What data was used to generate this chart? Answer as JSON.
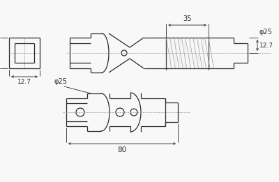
{
  "bg_color": "#f8f8f8",
  "line_color": "#2a2a2a",
  "dim_color": "#2a2a2a",
  "fig_width": 4.0,
  "fig_height": 2.61,
  "dpi": 100,
  "annotations": {
    "top_width": "35",
    "top_height1": "12.7",
    "top_diam": "φ25",
    "left_width": "12.7",
    "left_height": "12.7",
    "bottom_diam": "φ25",
    "bottom_total": "80"
  }
}
